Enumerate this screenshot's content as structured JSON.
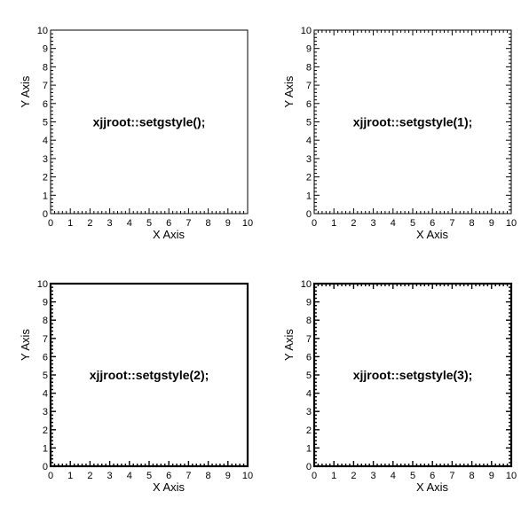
{
  "chart_data": [
    {
      "type": "scatter",
      "annotation": "xjjroot::setgstyle();",
      "xlabel": "X Axis",
      "ylabel": "Y Axis",
      "xlim": [
        0,
        10
      ],
      "ylim": [
        0,
        10
      ],
      "x_ticks": [
        "0",
        "1",
        "2",
        "3",
        "4",
        "5",
        "6",
        "7",
        "8",
        "9",
        "10"
      ],
      "y_ticks": [
        "0",
        "1",
        "2",
        "3",
        "4",
        "5",
        "6",
        "7",
        "8",
        "9",
        "10"
      ],
      "ticks_both_sides": false,
      "thick_frame": false,
      "series": []
    },
    {
      "type": "scatter",
      "annotation": "xjjroot::setgstyle(1);",
      "xlabel": "X Axis",
      "ylabel": "Y Axis",
      "xlim": [
        0,
        10
      ],
      "ylim": [
        0,
        10
      ],
      "x_ticks": [
        "0",
        "1",
        "2",
        "3",
        "4",
        "5",
        "6",
        "7",
        "8",
        "9",
        "10"
      ],
      "y_ticks": [
        "0",
        "1",
        "2",
        "3",
        "4",
        "5",
        "6",
        "7",
        "8",
        "9",
        "10"
      ],
      "ticks_both_sides": true,
      "thick_frame": false,
      "series": []
    },
    {
      "type": "scatter",
      "annotation": "xjjroot::setgstyle(2);",
      "xlabel": "X Axis",
      "ylabel": "Y Axis",
      "xlim": [
        0,
        10
      ],
      "ylim": [
        0,
        10
      ],
      "x_ticks": [
        "0",
        "1",
        "2",
        "3",
        "4",
        "5",
        "6",
        "7",
        "8",
        "9",
        "10"
      ],
      "y_ticks": [
        "0",
        "1",
        "2",
        "3",
        "4",
        "5",
        "6",
        "7",
        "8",
        "9",
        "10"
      ],
      "ticks_both_sides": false,
      "thick_frame": true,
      "series": []
    },
    {
      "type": "scatter",
      "annotation": "xjjroot::setgstyle(3);",
      "xlabel": "X Axis",
      "ylabel": "Y Axis",
      "xlim": [
        0,
        10
      ],
      "ylim": [
        0,
        10
      ],
      "x_ticks": [
        "0",
        "1",
        "2",
        "3",
        "4",
        "5",
        "6",
        "7",
        "8",
        "9",
        "10"
      ],
      "y_ticks": [
        "0",
        "1",
        "2",
        "3",
        "4",
        "5",
        "6",
        "7",
        "8",
        "9",
        "10"
      ],
      "ticks_both_sides": true,
      "thick_frame": true,
      "series": []
    }
  ]
}
